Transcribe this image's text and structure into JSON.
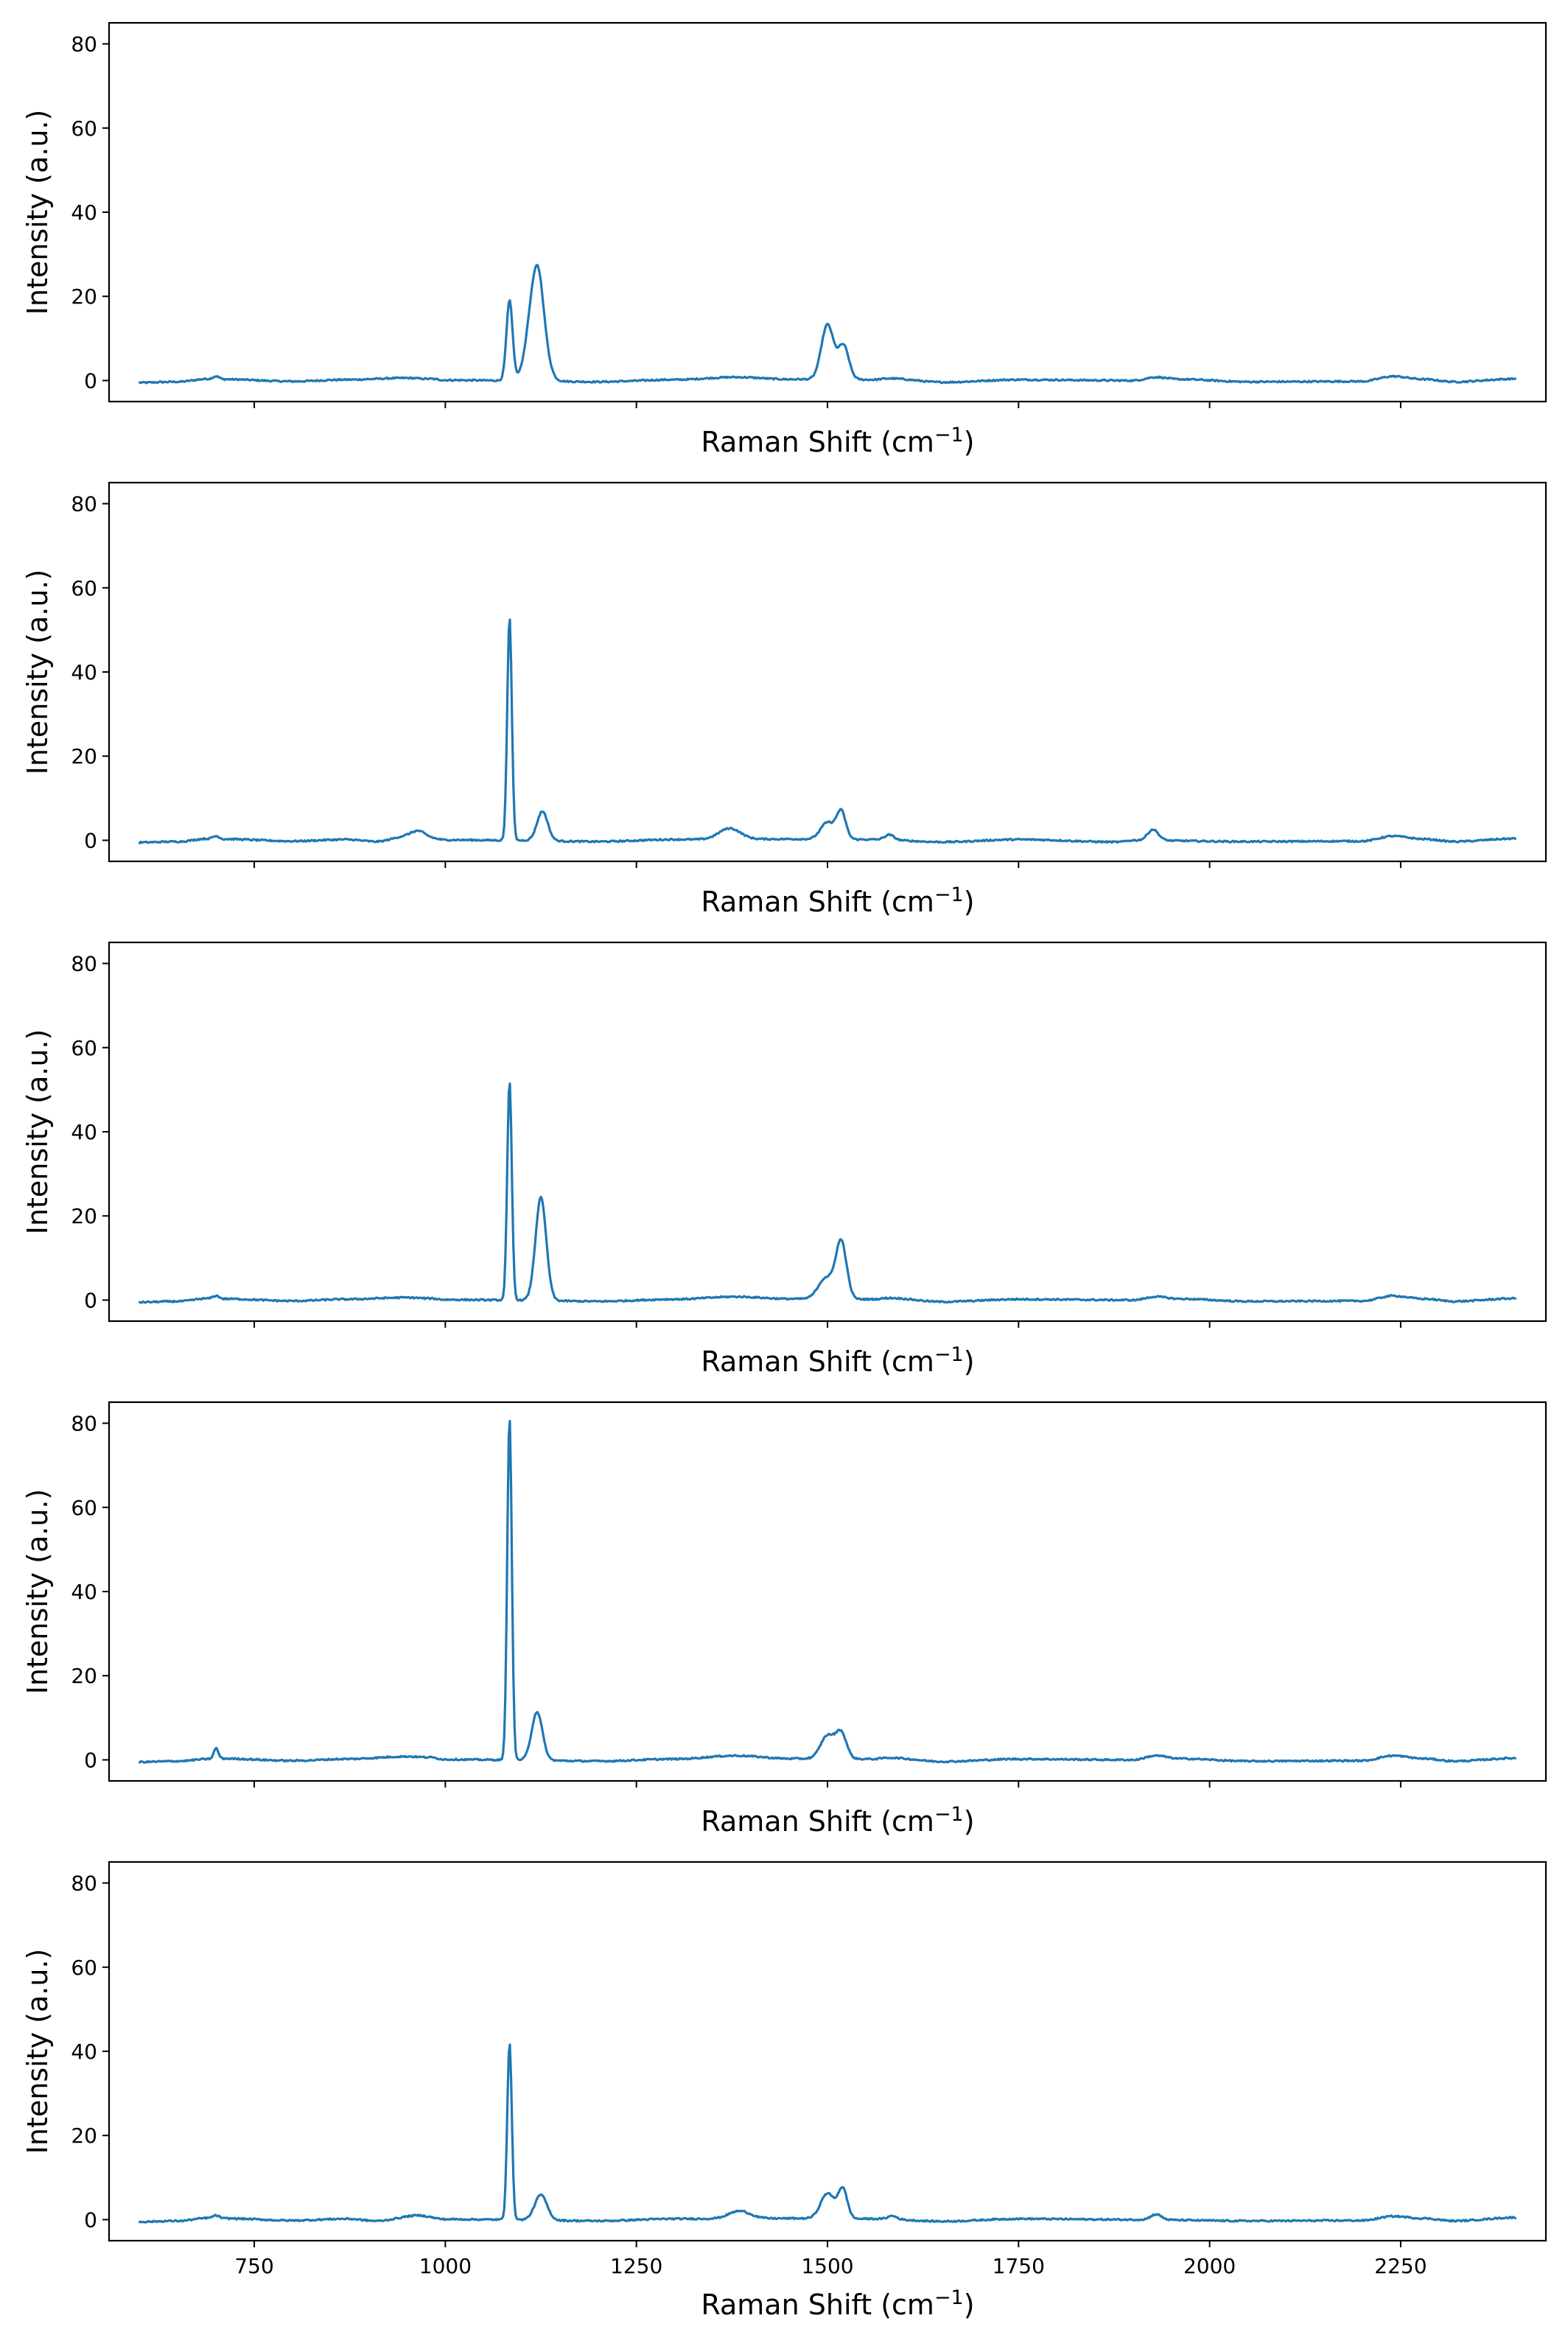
{
  "colors": {
    "series": "#1f77b4",
    "axis": "#000000"
  },
  "chart_data": [
    {
      "type": "line",
      "xlabel": "Raman Shift (cm",
      "xlabel_sup": "−1",
      "xlabel_end": ")",
      "ylabel": "Intensity (a.u.)",
      "xlim": [
        560,
        2440
      ],
      "ylim": [
        -5,
        85
      ],
      "xticks": [],
      "yticks": [
        0,
        20,
        40,
        60,
        80
      ],
      "baseline": [
        [
          600,
          -0.5
        ],
        [
          650,
          -0.3
        ],
        [
          690,
          0.4
        ],
        [
          700,
          1.0
        ],
        [
          710,
          0.3
        ],
        [
          800,
          -0.2
        ],
        [
          870,
          0.2
        ],
        [
          950,
          0.6
        ],
        [
          980,
          0.4
        ],
        [
          1000,
          0.1
        ],
        [
          1080,
          0
        ],
        [
          1200,
          -0.3
        ],
        [
          1300,
          0.2
        ],
        [
          1380,
          0.8
        ],
        [
          1450,
          0.3
        ],
        [
          1560,
          0.2
        ],
        [
          1580,
          0.5
        ],
        [
          1650,
          -0.4
        ],
        [
          1750,
          0.2
        ],
        [
          1900,
          0
        ],
        [
          1930,
          0.8
        ],
        [
          1960,
          0.3
        ],
        [
          2050,
          -0.3
        ],
        [
          2200,
          -0.2
        ],
        [
          2240,
          1.0
        ],
        [
          2280,
          0.3
        ],
        [
          2320,
          -0.3
        ],
        [
          2400,
          0.4
        ]
      ],
      "peaks": [
        [
          1084,
          19,
          4
        ],
        [
          1119,
          25.5,
          10
        ],
        [
          1123,
          2.5,
          5
        ],
        [
          1500,
          13,
          8
        ],
        [
          1521,
          8,
          7
        ]
      ]
    },
    {
      "type": "line",
      "xlabel": "Raman Shift (cm",
      "xlabel_sup": "−1",
      "xlabel_end": ")",
      "ylabel": "Intensity (a.u.)",
      "xlim": [
        560,
        2440
      ],
      "ylim": [
        -5,
        85
      ],
      "xticks": [],
      "yticks": [
        0,
        20,
        40,
        60,
        80
      ],
      "baseline": [
        [
          600,
          -0.5
        ],
        [
          650,
          -0.3
        ],
        [
          690,
          0.4
        ],
        [
          700,
          1.0
        ],
        [
          710,
          0.3
        ],
        [
          800,
          -0.2
        ],
        [
          870,
          0.2
        ],
        [
          910,
          -0.3
        ],
        [
          950,
          1.0
        ],
        [
          980,
          0.5
        ],
        [
          1000,
          0.1
        ],
        [
          1080,
          0
        ],
        [
          1200,
          -0.3
        ],
        [
          1300,
          0.2
        ],
        [
          1450,
          0.3
        ],
        [
          1560,
          0.2
        ],
        [
          1650,
          -0.4
        ],
        [
          1750,
          0.2
        ],
        [
          1880,
          -0.4
        ],
        [
          1900,
          0
        ],
        [
          2050,
          -0.3
        ],
        [
          2200,
          -0.2
        ],
        [
          2240,
          1.0
        ],
        [
          2280,
          0.3
        ],
        [
          2320,
          -0.3
        ],
        [
          2400,
          0.4
        ]
      ],
      "peaks": [
        [
          1084,
          53,
          3
        ],
        [
          1127,
          7,
          7
        ],
        [
          965,
          1.5,
          9
        ],
        [
          1372,
          2.6,
          14
        ],
        [
          1500,
          4,
          9
        ],
        [
          1518,
          6.5,
          6
        ],
        [
          1581,
          1.2,
          6
        ],
        [
          1926,
          2.6,
          7
        ]
      ]
    },
    {
      "type": "line",
      "xlabel": "Raman Shift (cm",
      "xlabel_sup": "−1",
      "xlabel_end": ")",
      "ylabel": "Intensity (a.u.)",
      "xlim": [
        560,
        2440
      ],
      "ylim": [
        -5,
        85
      ],
      "xticks": [],
      "yticks": [
        0,
        20,
        40,
        60,
        80
      ],
      "baseline": [
        [
          600,
          -0.5
        ],
        [
          650,
          -0.3
        ],
        [
          690,
          0.4
        ],
        [
          700,
          1.0
        ],
        [
          710,
          0.3
        ],
        [
          800,
          -0.2
        ],
        [
          870,
          0.2
        ],
        [
          950,
          0.6
        ],
        [
          980,
          0.4
        ],
        [
          1000,
          0.1
        ],
        [
          1080,
          0
        ],
        [
          1200,
          -0.3
        ],
        [
          1300,
          0.2
        ],
        [
          1380,
          0.8
        ],
        [
          1450,
          0.3
        ],
        [
          1560,
          0.2
        ],
        [
          1580,
          0.5
        ],
        [
          1650,
          -0.4
        ],
        [
          1750,
          0.2
        ],
        [
          1900,
          0
        ],
        [
          1930,
          0.8
        ],
        [
          1960,
          0.3
        ],
        [
          2050,
          -0.3
        ],
        [
          2200,
          -0.2
        ],
        [
          2240,
          1.0
        ],
        [
          2280,
          0.3
        ],
        [
          2320,
          -0.3
        ],
        [
          2400,
          0.4
        ]
      ],
      "peaks": [
        [
          1084,
          52,
          3
        ],
        [
          1125,
          24.5,
          7
        ],
        [
          1498,
          5,
          10
        ],
        [
          1518,
          13.5,
          7
        ]
      ]
    },
    {
      "type": "line",
      "xlabel": "Raman Shift (cm",
      "xlabel_sup": "−1",
      "xlabel_end": ")",
      "ylabel": "Intensity (a.u.)",
      "xlim": [
        560,
        2440
      ],
      "ylim": [
        -5,
        85
      ],
      "xticks": [],
      "yticks": [
        0,
        20,
        40,
        60,
        80
      ],
      "baseline": [
        [
          600,
          -0.5
        ],
        [
          650,
          -0.3
        ],
        [
          690,
          0.2
        ],
        [
          710,
          0.3
        ],
        [
          800,
          -0.2
        ],
        [
          870,
          0.2
        ],
        [
          950,
          0.8
        ],
        [
          980,
          0.6
        ],
        [
          1000,
          0.1
        ],
        [
          1080,
          0
        ],
        [
          1200,
          -0.3
        ],
        [
          1300,
          0.2
        ],
        [
          1380,
          1.0
        ],
        [
          1450,
          0.3
        ],
        [
          1560,
          0.2
        ],
        [
          1580,
          0.5
        ],
        [
          1650,
          -0.4
        ],
        [
          1750,
          0.2
        ],
        [
          1900,
          0
        ],
        [
          1930,
          1.0
        ],
        [
          1960,
          0.3
        ],
        [
          2050,
          -0.3
        ],
        [
          2200,
          -0.2
        ],
        [
          2240,
          1.0
        ],
        [
          2280,
          0.3
        ],
        [
          2320,
          -0.3
        ],
        [
          2400,
          0.4
        ]
      ],
      "peaks": [
        [
          700,
          2.5,
          3
        ],
        [
          1084,
          81.5,
          3
        ],
        [
          1120,
          11.5,
          7
        ],
        [
          1500,
          5.5,
          9
        ],
        [
          1518,
          6,
          7
        ]
      ]
    },
    {
      "type": "line",
      "xlabel": "Raman Shift (cm",
      "xlabel_sup": "−1",
      "xlabel_end": ")",
      "ylabel": "Intensity (a.u.)",
      "xlim": [
        560,
        2440
      ],
      "ylim": [
        -5,
        85
      ],
      "xticks": [
        750,
        1000,
        1250,
        1500,
        1750,
        2000,
        2250
      ],
      "yticks": [
        0,
        20,
        40,
        60,
        80
      ],
      "baseline": [
        [
          600,
          -0.5
        ],
        [
          650,
          -0.3
        ],
        [
          690,
          0.4
        ],
        [
          700,
          1.0
        ],
        [
          710,
          0.3
        ],
        [
          800,
          -0.2
        ],
        [
          870,
          0.2
        ],
        [
          910,
          -0.3
        ],
        [
          965,
          1.0
        ],
        [
          1000,
          0.1
        ],
        [
          1080,
          0
        ],
        [
          1200,
          -0.3
        ],
        [
          1300,
          0.2
        ],
        [
          1450,
          0.3
        ],
        [
          1560,
          0.2
        ],
        [
          1650,
          -0.4
        ],
        [
          1750,
          0.2
        ],
        [
          1900,
          0
        ],
        [
          2050,
          -0.3
        ],
        [
          2200,
          -0.2
        ],
        [
          2240,
          0.8
        ],
        [
          2280,
          0.3
        ],
        [
          2320,
          -0.3
        ],
        [
          2400,
          0.5
        ]
      ],
      "peaks": [
        [
          1084,
          42,
          3
        ],
        [
          1125,
          6,
          8
        ],
        [
          1385,
          1.8,
          14
        ],
        [
          1500,
          6,
          9
        ],
        [
          1520,
          7,
          6
        ],
        [
          1585,
          0.8,
          6
        ],
        [
          1930,
          1.3,
          7
        ]
      ]
    }
  ]
}
